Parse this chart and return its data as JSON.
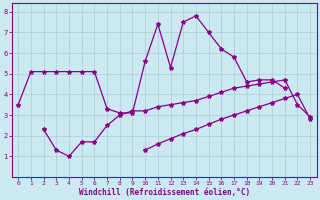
{
  "xlabel": "Windchill (Refroidissement éolien,°C)",
  "background_color": "#cce8f0",
  "grid_color": "#aaccdd",
  "line_color": "#880088",
  "xlim": [
    -0.5,
    23.5
  ],
  "ylim": [
    0,
    8.4
  ],
  "xticks": [
    0,
    1,
    2,
    3,
    4,
    5,
    6,
    7,
    8,
    9,
    10,
    11,
    12,
    13,
    14,
    15,
    16,
    17,
    18,
    19,
    20,
    21,
    22,
    23
  ],
  "yticks": [
    1,
    2,
    3,
    4,
    5,
    6,
    7,
    8
  ],
  "series": [
    {
      "x": [
        0,
        1,
        2,
        3,
        4,
        5,
        6,
        7,
        8,
        9,
        10,
        11,
        12,
        13,
        14,
        15,
        16,
        17,
        18,
        19,
        20,
        21
      ],
      "y": [
        3.5,
        5.1,
        5.1,
        5.1,
        5.1,
        5.1,
        5.1,
        3.3,
        3.1,
        3.1,
        5.6,
        7.4,
        5.3,
        7.5,
        7.8,
        7.0,
        6.2,
        5.8,
        4.6,
        4.7,
        4.7,
        4.3
      ]
    },
    {
      "x": [
        2,
        3,
        4,
        5,
        6,
        7,
        8,
        9,
        10,
        11,
        12,
        13,
        14,
        15,
        16,
        17,
        18,
        19,
        20,
        21,
        22,
        23
      ],
      "y": [
        2.3,
        1.3,
        1.0,
        1.7,
        1.7,
        2.5,
        3.0,
        3.2,
        3.2,
        3.4,
        3.5,
        3.6,
        3.7,
        3.9,
        4.1,
        4.3,
        4.4,
        4.5,
        4.6,
        4.7,
        3.5,
        2.9
      ]
    },
    {
      "x": [
        2,
        3,
        4,
        5,
        6,
        7,
        8,
        9,
        10,
        11,
        12,
        13,
        14,
        15,
        16,
        17,
        18,
        19,
        20,
        21,
        22,
        23
      ],
      "y": [
        null,
        null,
        null,
        null,
        null,
        null,
        null,
        null,
        1.3,
        1.6,
        1.85,
        2.1,
        2.3,
        2.55,
        2.8,
        3.0,
        3.2,
        3.4,
        3.6,
        3.8,
        4.0,
        2.8
      ]
    }
  ]
}
